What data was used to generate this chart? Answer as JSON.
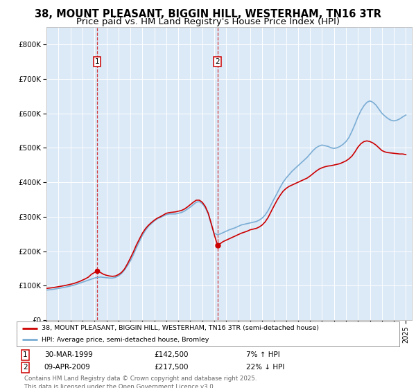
{
  "title": "38, MOUNT PLEASANT, BIGGIN HILL, WESTERHAM, TN16 3TR",
  "subtitle": "Price paid vs. HM Land Registry's House Price Index (HPI)",
  "title_fontsize": 10.5,
  "subtitle_fontsize": 9.5,
  "background_color": "#ffffff",
  "plot_bg_color": "#dce9f7",
  "grid_color": "#ffffff",
  "ylim": [
    0,
    850000
  ],
  "yticks": [
    0,
    100000,
    200000,
    300000,
    400000,
    500000,
    600000,
    700000,
    800000
  ],
  "ytick_labels": [
    "£0",
    "£100K",
    "£200K",
    "£300K",
    "£400K",
    "£500K",
    "£600K",
    "£700K",
    "£800K"
  ],
  "red_line_color": "#cc0000",
  "blue_line_color": "#7aadd4",
  "marker1_x": 1999.23,
  "marker1_y": 142500,
  "marker2_x": 2009.27,
  "marker2_y": 217500,
  "legend_line1": "38, MOUNT PLEASANT, BIGGIN HILL, WESTERHAM, TN16 3TR (semi-detached house)",
  "legend_line2": "HPI: Average price, semi-detached house, Bromley",
  "footer": "Contains HM Land Registry data © Crown copyright and database right 2025.\nThis data is licensed under the Open Government Licence v3.0.",
  "xtick_years": [
    1995,
    1996,
    1997,
    1998,
    1999,
    2000,
    2001,
    2002,
    2003,
    2004,
    2005,
    2006,
    2007,
    2008,
    2009,
    2010,
    2011,
    2012,
    2013,
    2014,
    2015,
    2016,
    2017,
    2018,
    2019,
    2020,
    2021,
    2022,
    2023,
    2024,
    2025
  ],
  "red_x": [
    1995.0,
    1995.25,
    1995.5,
    1995.75,
    1996.0,
    1996.25,
    1996.5,
    1996.75,
    1997.0,
    1997.25,
    1997.5,
    1997.75,
    1998.0,
    1998.25,
    1998.5,
    1998.75,
    1999.0,
    1999.23,
    1999.5,
    1999.75,
    2000.0,
    2000.25,
    2000.5,
    2000.75,
    2001.0,
    2001.25,
    2001.5,
    2001.75,
    2002.0,
    2002.25,
    2002.5,
    2002.75,
    2003.0,
    2003.25,
    2003.5,
    2003.75,
    2004.0,
    2004.25,
    2004.5,
    2004.75,
    2005.0,
    2005.25,
    2005.5,
    2005.75,
    2006.0,
    2006.25,
    2006.5,
    2006.75,
    2007.0,
    2007.25,
    2007.5,
    2007.75,
    2008.0,
    2008.25,
    2008.5,
    2008.75,
    2009.0,
    2009.27,
    2009.5,
    2009.75,
    2010.0,
    2010.25,
    2010.5,
    2010.75,
    2011.0,
    2011.25,
    2011.5,
    2011.75,
    2012.0,
    2012.25,
    2012.5,
    2012.75,
    2013.0,
    2013.25,
    2013.5,
    2013.75,
    2014.0,
    2014.25,
    2014.5,
    2014.75,
    2015.0,
    2015.25,
    2015.5,
    2015.75,
    2016.0,
    2016.25,
    2016.5,
    2016.75,
    2017.0,
    2017.25,
    2017.5,
    2017.75,
    2018.0,
    2018.25,
    2018.5,
    2018.75,
    2019.0,
    2019.25,
    2019.5,
    2019.75,
    2020.0,
    2020.25,
    2020.5,
    2020.75,
    2021.0,
    2021.25,
    2021.5,
    2021.75,
    2022.0,
    2022.25,
    2022.5,
    2022.75,
    2023.0,
    2023.25,
    2023.5,
    2023.75,
    2024.0,
    2024.25,
    2024.5,
    2024.75,
    2025.0
  ],
  "red_y": [
    92000,
    93000,
    94000,
    95500,
    97000,
    98500,
    100000,
    102000,
    104000,
    106000,
    109000,
    112000,
    116000,
    120000,
    125000,
    133000,
    138000,
    142500,
    138000,
    133000,
    130000,
    128000,
    127000,
    128000,
    132000,
    138000,
    148000,
    163000,
    180000,
    198000,
    218000,
    235000,
    252000,
    265000,
    275000,
    283000,
    290000,
    296000,
    300000,
    305000,
    310000,
    312000,
    313000,
    314000,
    316000,
    318000,
    322000,
    328000,
    335000,
    342000,
    348000,
    348000,
    342000,
    330000,
    310000,
    280000,
    248000,
    217500,
    222000,
    228000,
    232000,
    236000,
    240000,
    244000,
    248000,
    252000,
    255000,
    258000,
    262000,
    264000,
    266000,
    270000,
    276000,
    285000,
    298000,
    315000,
    332000,
    348000,
    362000,
    374000,
    382000,
    388000,
    392000,
    396000,
    400000,
    404000,
    408000,
    412000,
    418000,
    425000,
    432000,
    438000,
    442000,
    445000,
    447000,
    448000,
    450000,
    452000,
    454000,
    458000,
    462000,
    468000,
    476000,
    488000,
    502000,
    512000,
    518000,
    520000,
    518000,
    514000,
    508000,
    500000,
    492000,
    488000,
    486000,
    485000,
    484000,
    483000,
    482000,
    482000,
    480000
  ],
  "blue_x": [
    1995.0,
    1995.25,
    1995.5,
    1995.75,
    1996.0,
    1996.25,
    1996.5,
    1996.75,
    1997.0,
    1997.25,
    1997.5,
    1997.75,
    1998.0,
    1998.25,
    1998.5,
    1998.75,
    1999.0,
    1999.25,
    1999.5,
    1999.75,
    2000.0,
    2000.25,
    2000.5,
    2000.75,
    2001.0,
    2001.25,
    2001.5,
    2001.75,
    2002.0,
    2002.25,
    2002.5,
    2002.75,
    2003.0,
    2003.25,
    2003.5,
    2003.75,
    2004.0,
    2004.25,
    2004.5,
    2004.75,
    2005.0,
    2005.25,
    2005.5,
    2005.75,
    2006.0,
    2006.25,
    2006.5,
    2006.75,
    2007.0,
    2007.25,
    2007.5,
    2007.75,
    2008.0,
    2008.25,
    2008.5,
    2008.75,
    2009.0,
    2009.25,
    2009.5,
    2009.75,
    2010.0,
    2010.25,
    2010.5,
    2010.75,
    2011.0,
    2011.25,
    2011.5,
    2011.75,
    2012.0,
    2012.25,
    2012.5,
    2012.75,
    2013.0,
    2013.25,
    2013.5,
    2013.75,
    2014.0,
    2014.25,
    2014.5,
    2014.75,
    2015.0,
    2015.25,
    2015.5,
    2015.75,
    2016.0,
    2016.25,
    2016.5,
    2016.75,
    2017.0,
    2017.25,
    2017.5,
    2017.75,
    2018.0,
    2018.25,
    2018.5,
    2018.75,
    2019.0,
    2019.25,
    2019.5,
    2019.75,
    2020.0,
    2020.25,
    2020.5,
    2020.75,
    2021.0,
    2021.25,
    2021.5,
    2021.75,
    2022.0,
    2022.25,
    2022.5,
    2022.75,
    2023.0,
    2023.25,
    2023.5,
    2023.75,
    2024.0,
    2024.25,
    2024.5,
    2024.75,
    2025.0
  ],
  "blue_y": [
    87000,
    88000,
    89000,
    90500,
    92000,
    93500,
    95000,
    97000,
    99000,
    101000,
    104000,
    107000,
    110000,
    113000,
    116000,
    119000,
    122000,
    124000,
    125000,
    124000,
    123000,
    122000,
    122000,
    124000,
    128000,
    135000,
    145000,
    158000,
    172000,
    190000,
    210000,
    228000,
    246000,
    260000,
    272000,
    280000,
    288000,
    294000,
    298000,
    302000,
    306000,
    308000,
    308000,
    308000,
    310000,
    312000,
    316000,
    322000,
    328000,
    335000,
    342000,
    344000,
    338000,
    326000,
    308000,
    278000,
    252000,
    248000,
    250000,
    254000,
    258000,
    262000,
    265000,
    268000,
    272000,
    276000,
    278000,
    280000,
    282000,
    284000,
    286000,
    290000,
    296000,
    305000,
    318000,
    335000,
    352000,
    368000,
    385000,
    400000,
    412000,
    422000,
    432000,
    440000,
    448000,
    456000,
    464000,
    472000,
    482000,
    492000,
    500000,
    505000,
    508000,
    506000,
    504000,
    500000,
    498000,
    500000,
    504000,
    510000,
    518000,
    530000,
    548000,
    568000,
    590000,
    608000,
    622000,
    632000,
    636000,
    632000,
    624000,
    612000,
    600000,
    592000,
    585000,
    580000,
    578000,
    580000,
    584000,
    590000,
    595000
  ]
}
